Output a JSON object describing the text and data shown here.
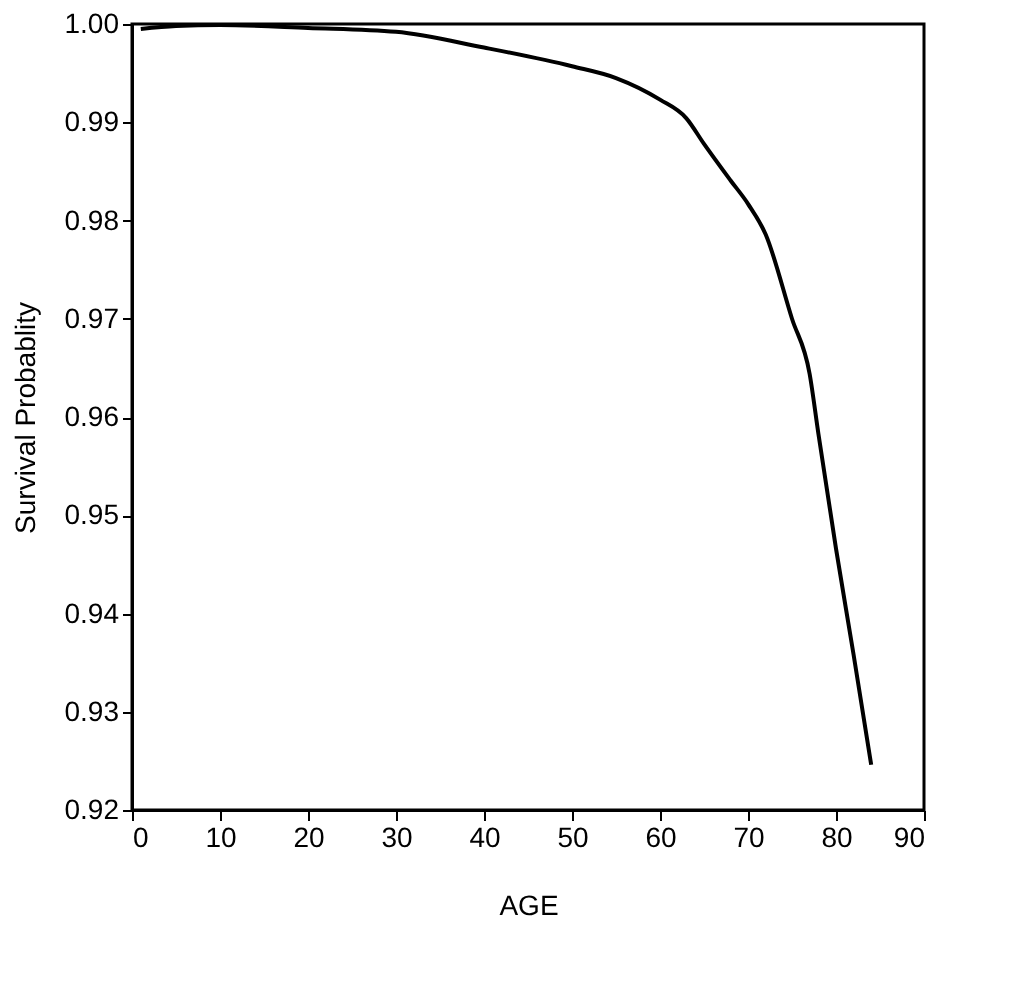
{
  "chart_data": {
    "type": "line",
    "xlabel": "AGE",
    "ylabel": "Survival Probablity",
    "x": [
      1,
      5,
      10,
      20,
      30,
      40,
      50,
      55,
      60,
      63,
      65,
      68,
      70,
      72,
      75,
      77,
      78,
      80,
      82,
      84
    ],
    "series": [
      {
        "color": "#000000",
        "values": [
          0.9995,
          0.9998,
          0.9999,
          0.9996,
          0.9992,
          0.9976,
          0.9957,
          0.9945,
          0.9923,
          0.9904,
          0.9878,
          0.9841,
          0.9817,
          0.9786,
          0.97,
          0.9644,
          0.9583,
          0.9466,
          0.9358,
          0.9246
        ]
      }
    ],
    "xlim": [
      0,
      90
    ],
    "xticks": [
      0,
      10,
      20,
      30,
      40,
      50,
      60,
      70,
      80,
      90
    ],
    "ylim": [
      0.92,
      1.0
    ],
    "yticks": [
      {
        "value": 0.92,
        "label": "0.92"
      },
      {
        "value": 0.93,
        "label": "0.93"
      },
      {
        "value": 0.94,
        "label": "0.94"
      },
      {
        "value": 0.95,
        "label": "0.95"
      },
      {
        "value": 0.96,
        "label": "0.96"
      },
      {
        "value": 0.97,
        "label": "0.97"
      },
      {
        "value": 0.98,
        "label": "0.98"
      },
      {
        "value": 0.99,
        "label": "0.99"
      },
      {
        "value": 1.0,
        "label": "1.00"
      }
    ],
    "grid": false,
    "marker": "none",
    "line_style": "solid"
  }
}
